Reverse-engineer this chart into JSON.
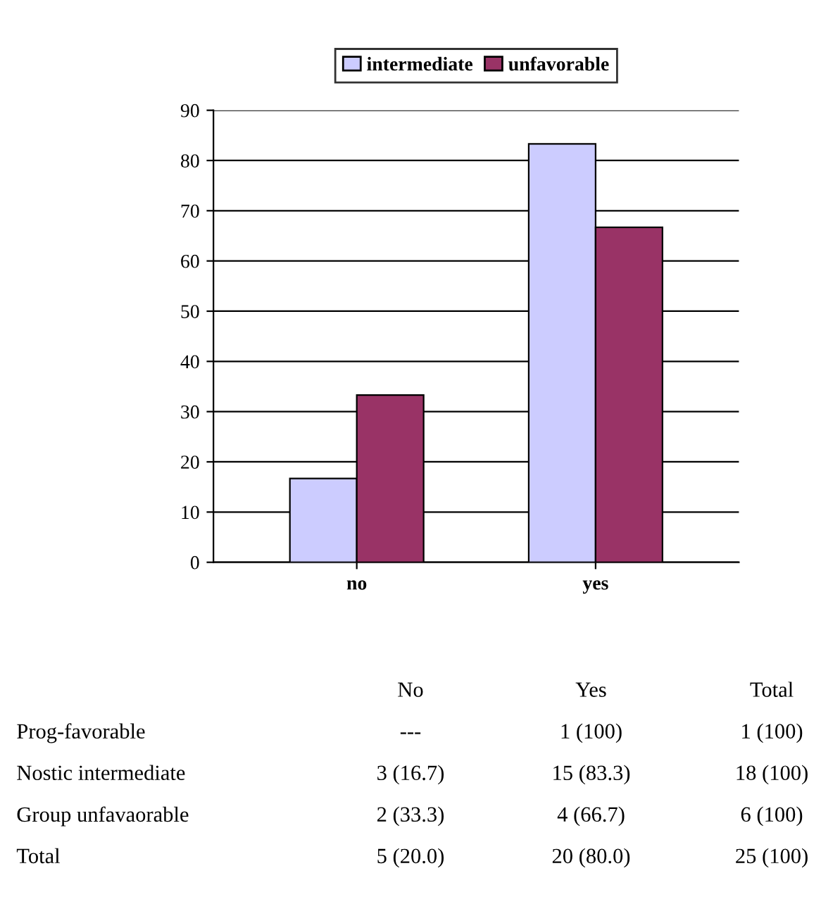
{
  "chart_data": {
    "type": "bar",
    "categories": [
      "no",
      "yes"
    ],
    "series": [
      {
        "name": "intermediate",
        "color": "#ccccff",
        "values": [
          16.7,
          83.3
        ]
      },
      {
        "name": "unfavorable",
        "color": "#993366",
        "values": [
          33.3,
          66.7
        ]
      }
    ],
    "ylim": [
      0,
      90
    ],
    "yticks": [
      0,
      10,
      20,
      30,
      40,
      50,
      60,
      70,
      80,
      90
    ],
    "grid": "y",
    "legend": "top",
    "annotations": [
      "No",
      "Yes",
      "Total",
      "Prog-favorable",
      "---",
      "1 (100)",
      "1 (100)",
      "Nostic intermediate",
      "3 (16.7)",
      "15 (83.3)",
      "18 (100)",
      "Group unfavaorable",
      "2 (33.3)",
      "4 (66.7)",
      "6 (100)",
      "Total",
      "5 (20.0)",
      "20 (80.0)",
      "25 (100)"
    ]
  }
}
